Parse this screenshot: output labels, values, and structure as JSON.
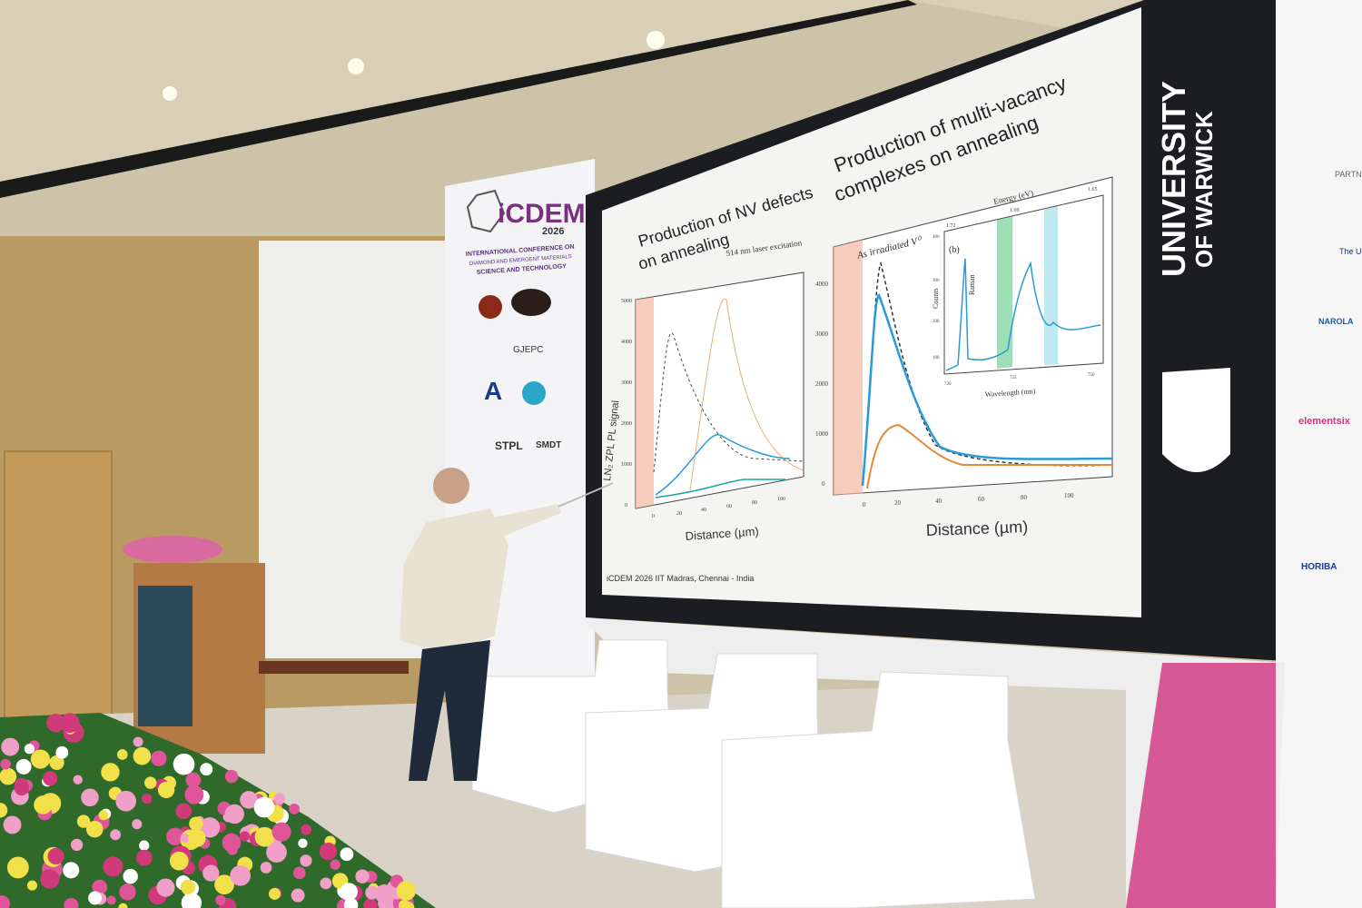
{
  "slide": {
    "title_left": [
      "Production of NV defects",
      "on annealing"
    ],
    "title_right": [
      "Production of multi-vacancy",
      "complexes on annealing"
    ],
    "left_chart": {
      "annotation": "514 nm laser excitation",
      "ylabel": "LN₂ ZPL PL signal",
      "xlabel": "Distance (µm)",
      "yticks": [
        "5000",
        "4000",
        "3000",
        "2000",
        "1000",
        "0"
      ],
      "xticks": [
        "0",
        "20",
        "40",
        "60",
        "80",
        "100"
      ]
    },
    "right_chart": {
      "annotation": "As irradiated V⁰",
      "xlabel": "Distance (µm)",
      "yticks": [
        "4000",
        "3000",
        "2000",
        "1000",
        "0"
      ],
      "xticks": [
        "0",
        "20",
        "40",
        "60",
        "80",
        "100"
      ],
      "inset": {
        "label": "(b)",
        "top_axis_label": "Energy (eV)",
        "top_ticks": [
          "1.72",
          "1.69",
          "1.65"
        ],
        "ylabel": "Counts",
        "yticks": [
          "400",
          "300",
          "200",
          "100"
        ],
        "raman_label": "Raman",
        "xlabel": "Wavelength (nm)",
        "xticks": [
          "720",
          "725",
          "750"
        ]
      }
    },
    "footer": "iCDEM 2026 IIT Madras, Chennai - India"
  },
  "screen_side": {
    "university": [
      "UNIVERSITY",
      "OF WARWICK"
    ]
  },
  "banner": {
    "logo": "iCDEM",
    "year": "2026",
    "lines": [
      "INTERNATIONAL CONFERENCE ON",
      "DIAMOND AND EMERGENT MATERIALS",
      "SCIENCE AND TECHNOLOGY"
    ],
    "sponsors": [
      "GJEPC",
      "STPL",
      "SMDT"
    ]
  },
  "right_banner": {
    "partners": [
      "PARTNERS",
      "The University of Arizona",
      "NAROLA",
      "elementsix",
      "HORIBA"
    ]
  },
  "colors": {
    "ceiling": "#d8ceb4",
    "screen_frame": "#1c1d20",
    "slide_bg": "#f4f4f2",
    "brand_purple": "#7a2f7f",
    "magenta": "#d0337f",
    "curve_blue": "#2a9bd6",
    "curve_orange": "#e08a3c"
  }
}
